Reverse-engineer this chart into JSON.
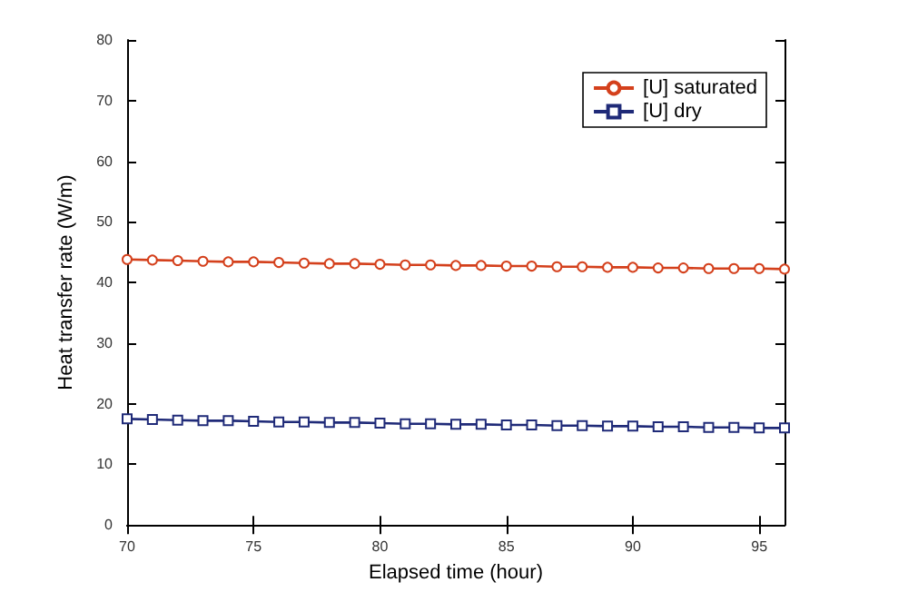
{
  "chart_data": {
    "type": "line",
    "xlabel": "Elapsed time (hour)",
    "ylabel": "Heat transfer rate (W/m)",
    "x": [
      70,
      71,
      72,
      73,
      74,
      75,
      76,
      77,
      78,
      79,
      80,
      81,
      82,
      83,
      84,
      85,
      86,
      87,
      88,
      89,
      90,
      91,
      92,
      93,
      94,
      95,
      96
    ],
    "series": [
      {
        "name": "[U] saturated",
        "color": "#d4401c",
        "marker": "circle",
        "values": [
          43.8,
          43.7,
          43.6,
          43.5,
          43.4,
          43.4,
          43.3,
          43.2,
          43.1,
          43.1,
          43.0,
          42.9,
          42.9,
          42.8,
          42.8,
          42.7,
          42.7,
          42.6,
          42.6,
          42.5,
          42.5,
          42.4,
          42.4,
          42.3,
          42.3,
          42.3,
          42.2
        ]
      },
      {
        "name": "[U] dry",
        "color": "#1f2a78",
        "marker": "square",
        "values": [
          17.5,
          17.4,
          17.3,
          17.2,
          17.2,
          17.1,
          17.0,
          17.0,
          16.9,
          16.9,
          16.8,
          16.7,
          16.7,
          16.6,
          16.6,
          16.5,
          16.5,
          16.4,
          16.4,
          16.3,
          16.3,
          16.2,
          16.2,
          16.1,
          16.1,
          16.0,
          16.0
        ]
      }
    ],
    "xlim": [
      70,
      96
    ],
    "xticks": [
      70,
      75,
      80,
      85,
      90,
      95
    ],
    "ylim": [
      0,
      80
    ],
    "yticks": [
      0,
      10,
      20,
      30,
      40,
      50,
      60,
      70,
      80
    ],
    "grid": false,
    "legend": "top right",
    "line_style": "solid"
  }
}
